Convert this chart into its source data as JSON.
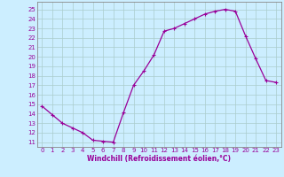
{
  "x": [
    0,
    1,
    2,
    3,
    4,
    5,
    6,
    7,
    8,
    9,
    10,
    11,
    12,
    13,
    14,
    15,
    16,
    17,
    18,
    19,
    20,
    21,
    22,
    23
  ],
  "y": [
    14.8,
    13.9,
    13.0,
    12.5,
    12.0,
    11.2,
    11.1,
    11.0,
    14.1,
    17.0,
    18.5,
    20.2,
    22.7,
    23.0,
    23.5,
    24.0,
    24.5,
    24.8,
    25.0,
    24.8,
    22.2,
    19.8,
    17.5,
    17.3
  ],
  "line_color": "#990099",
  "marker": "+",
  "marker_size": 3,
  "marker_lw": 0.8,
  "line_width": 0.9,
  "bg_color": "#cceeff",
  "grid_color": "#aacccc",
  "xlabel": "Windchill (Refroidissement éolien,°C)",
  "ylabel_ticks": [
    11,
    12,
    13,
    14,
    15,
    16,
    17,
    18,
    19,
    20,
    21,
    22,
    23,
    24,
    25
  ],
  "ylim": [
    10.5,
    25.8
  ],
  "xlim": [
    -0.5,
    23.5
  ],
  "tick_fontsize": 5,
  "xlabel_fontsize": 5.5,
  "spine_color": "#888888"
}
